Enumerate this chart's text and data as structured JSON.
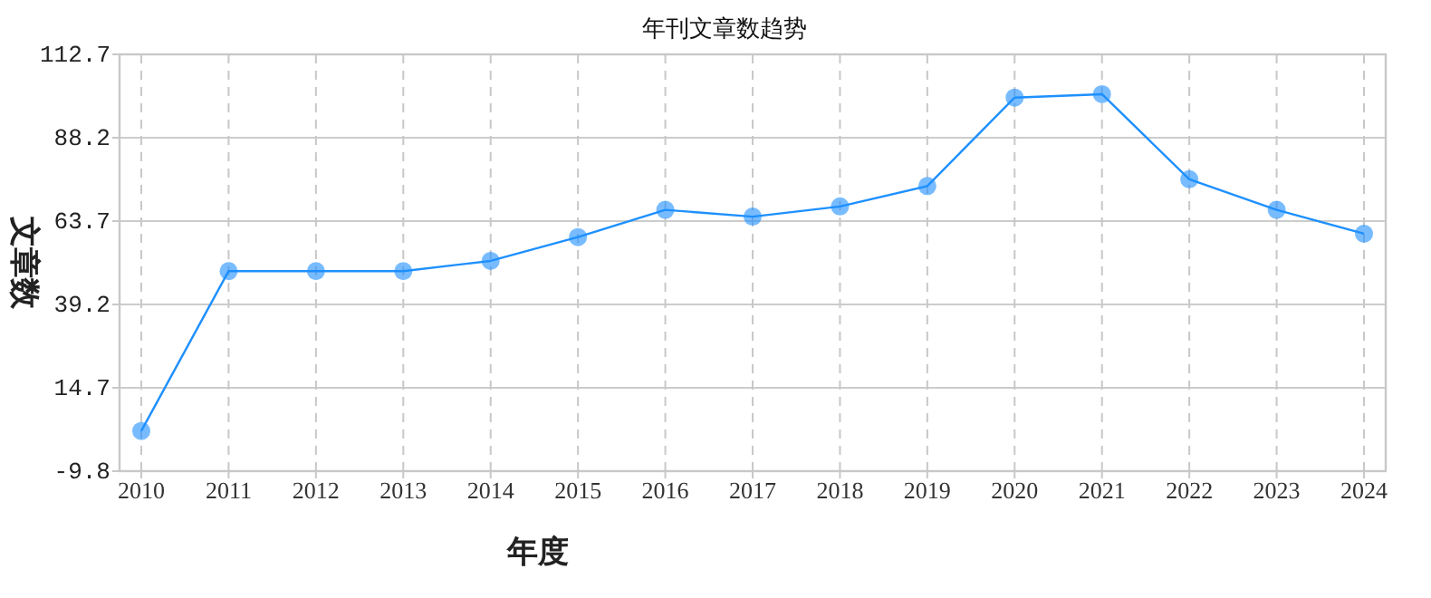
{
  "chart_data": {
    "type": "line",
    "title": "年刊文章数趋势",
    "xlabel": "年度",
    "ylabel": "文章数",
    "categories": [
      "2010",
      "2011",
      "2012",
      "2013",
      "2014",
      "2015",
      "2016",
      "2017",
      "2018",
      "2019",
      "2020",
      "2021",
      "2022",
      "2023",
      "2024"
    ],
    "series": [
      {
        "color": "#1e90ff",
        "values": [
          2,
          49,
          49,
          49,
          52,
          59,
          67,
          65,
          68,
          74,
          100,
          101,
          76,
          67,
          60
        ]
      }
    ],
    "ylim": [
      -9.8,
      112.7
    ],
    "yticks": [
      -9.8,
      14.7,
      39.2,
      63.7,
      88.2,
      112.7
    ],
    "grid": true,
    "marker": "circle",
    "line_style": "solid"
  }
}
